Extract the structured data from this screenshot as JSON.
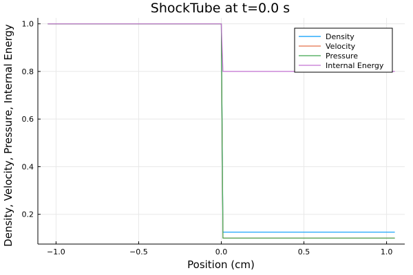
{
  "chart_data": {
    "type": "line",
    "title": "ShockTube at t=0.0 s",
    "xlabel": "Position (cm)",
    "ylabel": "Density, Velocity, Pressure, Internal Energy",
    "xlim": [
      -1.11,
      1.11
    ],
    "ylim": [
      0.075,
      1.025
    ],
    "xticks": [
      -1.0,
      -0.5,
      0.0,
      0.5,
      1.0
    ],
    "xtick_labels": [
      "−1.0",
      "−0.5",
      "0.0",
      "0.5",
      "1.0"
    ],
    "yticks": [
      0.2,
      0.4,
      0.6,
      0.8,
      1.0
    ],
    "ytick_labels": [
      "0.2",
      "0.4",
      "0.6",
      "0.8",
      "1.0"
    ],
    "grid": true,
    "legend_position": "top-right",
    "series": [
      {
        "name": "Density",
        "color": "#009AFA",
        "x": [
          -1.05,
          0.0,
          0.01,
          1.05
        ],
        "y": [
          1.0,
          1.0,
          0.125,
          0.125
        ]
      },
      {
        "name": "Velocity",
        "color": "#E36F47",
        "x": [
          -1.05,
          0.0,
          0.01,
          1.05
        ],
        "y": [
          1.0,
          1.0,
          0.1,
          0.1
        ]
      },
      {
        "name": "Pressure",
        "color": "#3EA44E",
        "x": [
          -1.05,
          0.0,
          0.01,
          1.05
        ],
        "y": [
          1.0,
          1.0,
          0.1,
          0.1
        ]
      },
      {
        "name": "Internal Energy",
        "color": "#C271D2",
        "x": [
          -1.05,
          0.0,
          0.01,
          1.05
        ],
        "y": [
          1.0,
          1.0,
          0.8,
          0.8
        ]
      }
    ]
  }
}
